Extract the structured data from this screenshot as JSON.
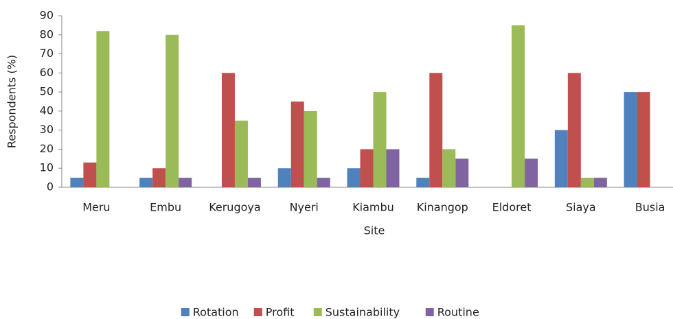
{
  "chart_data": {
    "type": "bar",
    "x_label": "Site",
    "y_label": "Respondents (%)",
    "categories": [
      "Meru",
      "Embu",
      "Kerugoya",
      "Nyeri",
      "Kiambu",
      "Kinangop",
      "Eldoret",
      "Siaya",
      "Busia"
    ],
    "series": [
      {
        "name": "Rotation",
        "color": "#4f81bd",
        "values": [
          5,
          5,
          0,
          10,
          10,
          5,
          0,
          30,
          50
        ]
      },
      {
        "name": "Profit",
        "color": "#c0504d",
        "values": [
          13,
          10,
          60,
          45,
          20,
          60,
          0,
          60,
          50
        ]
      },
      {
        "name": "Sustainability",
        "color": "#9bbb59",
        "values": [
          82,
          80,
          35,
          40,
          50,
          20,
          85,
          5,
          0
        ]
      },
      {
        "name": "Routine",
        "color": "#8064a2",
        "values": [
          0,
          5,
          5,
          5,
          20,
          15,
          15,
          5,
          0
        ]
      }
    ],
    "ylim": [
      0,
      90
    ],
    "yticks": [
      0,
      10,
      20,
      30,
      40,
      50,
      60,
      70,
      80,
      90
    ],
    "grid": false,
    "legend": "bottom"
  }
}
